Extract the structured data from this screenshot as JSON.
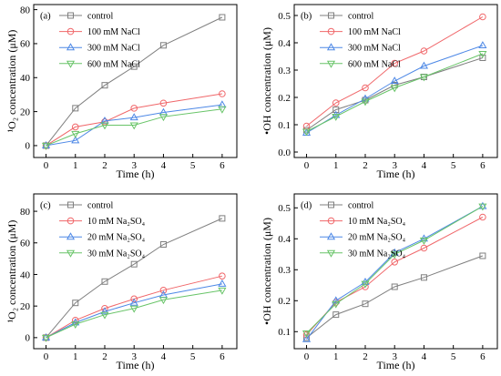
{
  "chart_data": [
    {
      "label": "(a)",
      "type": "line",
      "x": [
        0,
        1,
        2,
        3,
        4,
        6
      ],
      "xlabel": "Time (h)",
      "ylabel": "¹O₂ concentration (μM)",
      "xlim": [
        -0.42,
        6.5
      ],
      "ylim": [
        -7,
        83
      ],
      "xticks": [
        "0",
        "1",
        "2",
        "3",
        "4",
        "5",
        "6"
      ],
      "yticks": [
        "0",
        "20",
        "40",
        "60",
        "80"
      ],
      "grid": false,
      "legend": "top-left",
      "series": [
        {
          "name": "control",
          "values": [
            0,
            22,
            35.5,
            46.5,
            59,
            75.5
          ],
          "color": "#7f7f7f",
          "marker": "square"
        },
        {
          "name": "100 mM NaCl",
          "values": [
            0,
            11,
            14,
            22,
            25,
            30.5
          ],
          "color": "#f0676a",
          "marker": "circle"
        },
        {
          "name": "300 mM NaCl",
          "values": [
            0,
            3,
            14.5,
            16.5,
            19.5,
            24
          ],
          "color": "#4d88e6",
          "marker": "triangle-up"
        },
        {
          "name": "600 mM NaCl",
          "values": [
            0,
            7,
            12,
            12,
            17,
            21.5
          ],
          "color": "#68c468",
          "marker": "triangle-down"
        }
      ]
    },
    {
      "label": "(b)",
      "type": "line",
      "x": [
        0,
        1,
        2,
        3,
        4,
        6
      ],
      "xlabel": "Time (h)",
      "ylabel": "•OH concentration (μM)",
      "xlim": [
        -0.42,
        6.5
      ],
      "ylim": [
        -0.02,
        0.54
      ],
      "xticks": [
        "0",
        "1",
        "2",
        "3",
        "4",
        "5",
        "6"
      ],
      "yticks": [
        "0.0",
        "0.1",
        "0.2",
        "0.3",
        "0.4",
        "0.5"
      ],
      "grid": false,
      "legend": "top-left",
      "series": [
        {
          "name": "control",
          "values": [
            0.08,
            0.155,
            0.19,
            0.245,
            0.275,
            0.345
          ],
          "color": "#7f7f7f",
          "marker": "square"
        },
        {
          "name": "100 mM NaCl",
          "values": [
            0.095,
            0.18,
            0.235,
            0.325,
            0.37,
            0.495
          ],
          "color": "#f0676a",
          "marker": "circle"
        },
        {
          "name": "300 mM NaCl",
          "values": [
            0.07,
            0.135,
            0.195,
            0.26,
            0.315,
            0.39
          ],
          "color": "#4d88e6",
          "marker": "triangle-up"
        },
        {
          "name": "600 mM NaCl",
          "values": [
            0.075,
            0.13,
            0.185,
            0.235,
            0.275,
            0.36
          ],
          "color": "#68c468",
          "marker": "triangle-down"
        }
      ]
    },
    {
      "label": "(c)",
      "type": "line",
      "x": [
        0,
        1,
        2,
        3,
        4,
        6
      ],
      "xlabel": "Time (h)",
      "ylabel": "¹O₂ concentration (μM)",
      "xlim": [
        -0.42,
        6.5
      ],
      "ylim": [
        -7,
        91
      ],
      "xticks": [
        "0",
        "1",
        "2",
        "3",
        "4",
        "5",
        "6"
      ],
      "yticks": [
        "0",
        "20",
        "40",
        "60",
        "80"
      ],
      "grid": false,
      "legend": "top-left",
      "series": [
        {
          "name": "control",
          "values": [
            0,
            22,
            35.5,
            46.5,
            59,
            75.5
          ],
          "color": "#7f7f7f",
          "marker": "square"
        },
        {
          "name": "10 mM Na₂SO₄",
          "values": [
            0,
            11,
            18.5,
            24.5,
            30,
            39
          ],
          "color": "#f0676a",
          "marker": "circle"
        },
        {
          "name": "20 mM Na₂SO₄",
          "values": [
            0,
            9.5,
            16.5,
            22,
            27,
            34
          ],
          "color": "#4d88e6",
          "marker": "triangle-up"
        },
        {
          "name": "30 mM Na₂SO₄",
          "values": [
            0,
            8.5,
            14.5,
            18.5,
            24,
            30
          ],
          "color": "#68c468",
          "marker": "triangle-down"
        }
      ]
    },
    {
      "label": "(d)",
      "type": "line",
      "x": [
        0,
        1,
        2,
        3,
        4,
        6
      ],
      "xlabel": "Time (h)",
      "ylabel": "•OH concentration (μM)",
      "xlim": [
        -0.42,
        6.5
      ],
      "ylim": [
        0.045,
        0.545
      ],
      "xticks": [
        "0",
        "1",
        "2",
        "3",
        "4",
        "5",
        "6"
      ],
      "yticks": [
        "0.1",
        "0.2",
        "0.3",
        "0.4",
        "0.5"
      ],
      "grid": false,
      "legend": "top-left",
      "series": [
        {
          "name": "control",
          "values": [
            0.08,
            0.155,
            0.19,
            0.245,
            0.275,
            0.345
          ],
          "color": "#7f7f7f",
          "marker": "square"
        },
        {
          "name": "10 mM Na₂SO₄",
          "values": [
            0.09,
            0.195,
            0.245,
            0.325,
            0.37,
            0.47
          ],
          "color": "#f0676a",
          "marker": "circle"
        },
        {
          "name": "20 mM Na₂SO₄",
          "values": [
            0.075,
            0.2,
            0.26,
            0.355,
            0.4,
            0.505
          ],
          "color": "#4d88e6",
          "marker": "triangle-up"
        },
        {
          "name": "30 mM Na₂SO₄",
          "values": [
            0.095,
            0.19,
            0.255,
            0.35,
            0.395,
            0.505
          ],
          "color": "#68c468",
          "marker": "triangle-down"
        }
      ]
    }
  ]
}
